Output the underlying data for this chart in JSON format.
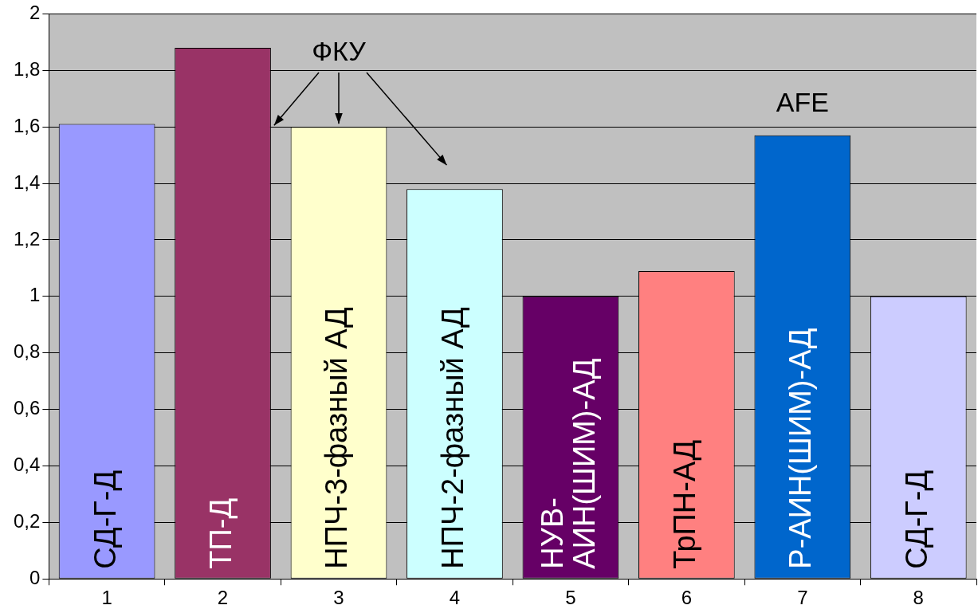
{
  "chart_data": {
    "type": "bar",
    "categories": [
      "1",
      "2",
      "3",
      "4",
      "5",
      "6",
      "7",
      "8"
    ],
    "values": [
      1.61,
      1.88,
      1.6,
      1.38,
      1.0,
      1.09,
      1.57,
      1.0
    ],
    "colors": [
      "#9999ff",
      "#993366",
      "#ffffcc",
      "#ccffff",
      "#660066",
      "#ff8080",
      "#0066cc",
      "#ccccff"
    ],
    "ylim": [
      0,
      2
    ],
    "yticks": [
      0,
      {
        "value": 0.2,
        "label": "0,2"
      },
      {
        "value": 0.4,
        "label": "0,4"
      },
      {
        "value": 0.6,
        "label": "0,6"
      },
      {
        "value": 0.8,
        "label": "0,8"
      },
      1,
      {
        "value": 1.2,
        "label": "1,2"
      },
      {
        "value": 1.4,
        "label": "1,4"
      },
      {
        "value": 1.6,
        "label": "1,6"
      },
      {
        "value": 1.8,
        "label": "1,8"
      },
      2
    ],
    "grid": "y",
    "value_labels": [
      "СД-Г-Д",
      "ТП-Д",
      "НПЧ-3-фазный АД",
      "НПЧ-2-фазный АД",
      "НУВ-АИН(ШИМ)-АД",
      "ТрПН-АД",
      "Р-АИН(ШИМ)-АД",
      "СД-Г-Д"
    ],
    "annotations": [
      "ФКУ",
      "AFE"
    ]
  }
}
